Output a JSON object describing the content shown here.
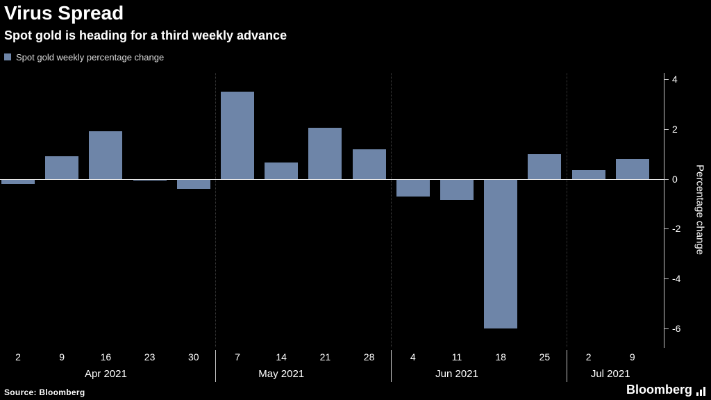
{
  "header": {
    "title": "Virus Spread",
    "subtitle": "Spot gold is heading for a third weekly advance"
  },
  "legend": {
    "label": "Spot gold weekly percentage change",
    "swatch_color": "#6e85a8"
  },
  "footer": {
    "source": "Source: Bloomberg",
    "brand": "Bloomberg"
  },
  "chart_data": {
    "type": "bar",
    "title": "Virus Spread",
    "subtitle": "Spot gold is heading for a third weekly advance",
    "series_name": "Spot gold weekly percentage change",
    "categories": [
      "2",
      "9",
      "16",
      "23",
      "30",
      "7",
      "14",
      "21",
      "28",
      "4",
      "11",
      "18",
      "25",
      "2",
      "9"
    ],
    "values": [
      -0.2,
      0.9,
      1.9,
      -0.05,
      -0.4,
      3.5,
      0.65,
      2.05,
      1.2,
      -0.7,
      -0.85,
      -6.0,
      1.0,
      0.35,
      0.8
    ],
    "month_groups": [
      {
        "label": "Apr 2021",
        "start_index": 0,
        "end_index": 4,
        "label_index": 2
      },
      {
        "label": "May 2021",
        "start_index": 5,
        "end_index": 8,
        "label_index": 6
      },
      {
        "label": "Jun 2021",
        "start_index": 9,
        "end_index": 12,
        "label_index": 10
      },
      {
        "label": "Jul 2021",
        "start_index": 13,
        "end_index": 14,
        "label_index": 13.5
      }
    ],
    "ylabel": "Percentage change",
    "yticks": [
      4,
      2,
      0,
      -2,
      -4,
      -6
    ],
    "ylim": [
      -6.75,
      4.25
    ],
    "bar_color": "#6e85a8",
    "background_color": "#000000",
    "zero_line": true,
    "grid": "dotted vertical month dividers",
    "legend_position": "top-left",
    "y_axis_position": "right"
  }
}
